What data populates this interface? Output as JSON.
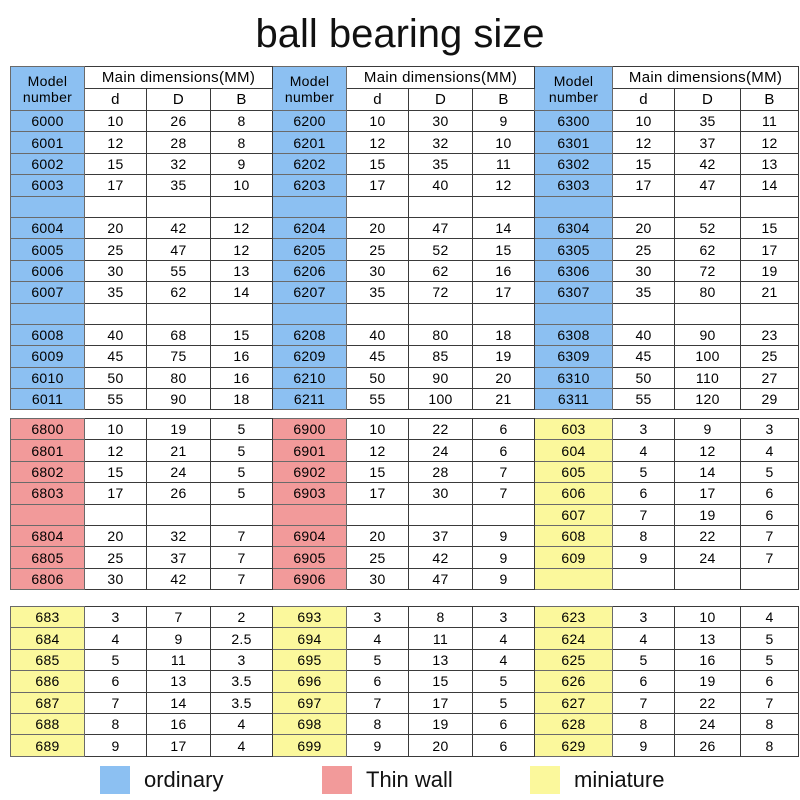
{
  "title": "ball bearing size",
  "colors": {
    "ordinary": "#8cc0f2",
    "thin_wall": "#f29a9a",
    "miniature": "#fbf89c"
  },
  "header": {
    "model": "Model number",
    "main": "Main dimensions(MM)",
    "cols": [
      "d",
      "D",
      "B"
    ]
  },
  "sections": [
    {
      "color": "ordinary",
      "groups": [
        {
          "rows": [
            [
              "6000",
              "10",
              "26",
              "8",
              "6200",
              "10",
              "30",
              "9",
              "6300",
              "10",
              "35",
              "11"
            ],
            [
              "6001",
              "12",
              "28",
              "8",
              "6201",
              "12",
              "32",
              "10",
              "6301",
              "12",
              "37",
              "12"
            ],
            [
              "6002",
              "15",
              "32",
              "9",
              "6202",
              "15",
              "35",
              "11",
              "6302",
              "15",
              "42",
              "13"
            ],
            [
              "6003",
              "17",
              "35",
              "10",
              "6203",
              "17",
              "40",
              "12",
              "6303",
              "17",
              "47",
              "14"
            ],
            [
              "",
              "",
              "",
              "",
              "",
              "",
              "",
              "",
              "",
              "",
              "",
              ""
            ],
            [
              "6004",
              "20",
              "42",
              "12",
              "6204",
              "20",
              "47",
              "14",
              "6304",
              "20",
              "52",
              "15"
            ],
            [
              "6005",
              "25",
              "47",
              "12",
              "6205",
              "25",
              "52",
              "15",
              "6305",
              "25",
              "62",
              "17"
            ],
            [
              "6006",
              "30",
              "55",
              "13",
              "6206",
              "30",
              "62",
              "16",
              "6306",
              "30",
              "72",
              "19"
            ],
            [
              "6007",
              "35",
              "62",
              "14",
              "6207",
              "35",
              "72",
              "17",
              "6307",
              "35",
              "80",
              "21"
            ],
            [
              "",
              "",
              "",
              "",
              "",
              "",
              "",
              "",
              "",
              "",
              "",
              ""
            ],
            [
              "6008",
              "40",
              "68",
              "15",
              "6208",
              "40",
              "80",
              "18",
              "6308",
              "40",
              "90",
              "23"
            ],
            [
              "6009",
              "45",
              "75",
              "16",
              "6209",
              "45",
              "85",
              "19",
              "6309",
              "45",
              "100",
              "25"
            ],
            [
              "6010",
              "50",
              "80",
              "16",
              "6210",
              "50",
              "90",
              "20",
              "6310",
              "50",
              "110",
              "27"
            ],
            [
              "6011",
              "55",
              "90",
              "18",
              "6211",
              "55",
              "100",
              "21",
              "6311",
              "55",
              "120",
              "29"
            ]
          ]
        }
      ]
    },
    {
      "rows": [
        [
          "6800",
          "10",
          "19",
          "5",
          "6900",
          "10",
          "22",
          "6",
          "603",
          "3",
          "9",
          "3"
        ],
        [
          "6801",
          "12",
          "21",
          "5",
          "6901",
          "12",
          "24",
          "6",
          "604",
          "4",
          "12",
          "4"
        ],
        [
          "6802",
          "15",
          "24",
          "5",
          "6902",
          "15",
          "28",
          "7",
          "605",
          "5",
          "14",
          "5"
        ],
        [
          "6803",
          "17",
          "26",
          "5",
          "6903",
          "17",
          "30",
          "7",
          "606",
          "6",
          "17",
          "6"
        ],
        [
          "",
          "",
          "",
          "",
          "",
          "",
          "",
          "",
          "607",
          "7",
          "19",
          "6"
        ],
        [
          "6804",
          "20",
          "32",
          "7",
          "6904",
          "20",
          "37",
          "9",
          "608",
          "8",
          "22",
          "7"
        ],
        [
          "6805",
          "25",
          "37",
          "7",
          "6905",
          "25",
          "42",
          "9",
          "609",
          "9",
          "24",
          "7"
        ],
        [
          "6806",
          "30",
          "42",
          "7",
          "6906",
          "30",
          "47",
          "9",
          "",
          "",
          "",
          ""
        ]
      ]
    },
    {
      "rows": [
        [
          "683",
          "3",
          "7",
          "2",
          "693",
          "3",
          "8",
          "3",
          "623",
          "3",
          "10",
          "4"
        ],
        [
          "684",
          "4",
          "9",
          "2.5",
          "694",
          "4",
          "11",
          "4",
          "624",
          "4",
          "13",
          "5"
        ],
        [
          "685",
          "5",
          "11",
          "3",
          "695",
          "5",
          "13",
          "4",
          "625",
          "5",
          "16",
          "5"
        ],
        [
          "686",
          "6",
          "13",
          "3.5",
          "696",
          "6",
          "15",
          "5",
          "626",
          "6",
          "19",
          "6"
        ],
        [
          "687",
          "7",
          "14",
          "3.5",
          "697",
          "7",
          "17",
          "5",
          "627",
          "7",
          "22",
          "7"
        ],
        [
          "688",
          "8",
          "16",
          "4",
          "698",
          "8",
          "19",
          "6",
          "628",
          "8",
          "24",
          "8"
        ],
        [
          "689",
          "9",
          "17",
          "4",
          "699",
          "9",
          "20",
          "6",
          "629",
          "9",
          "26",
          "8"
        ]
      ]
    }
  ],
  "legend": [
    {
      "color": "ordinary",
      "label": "ordinary"
    },
    {
      "color": "thin_wall",
      "label": "Thin wall"
    },
    {
      "color": "miniature",
      "label": "miniature"
    }
  ]
}
